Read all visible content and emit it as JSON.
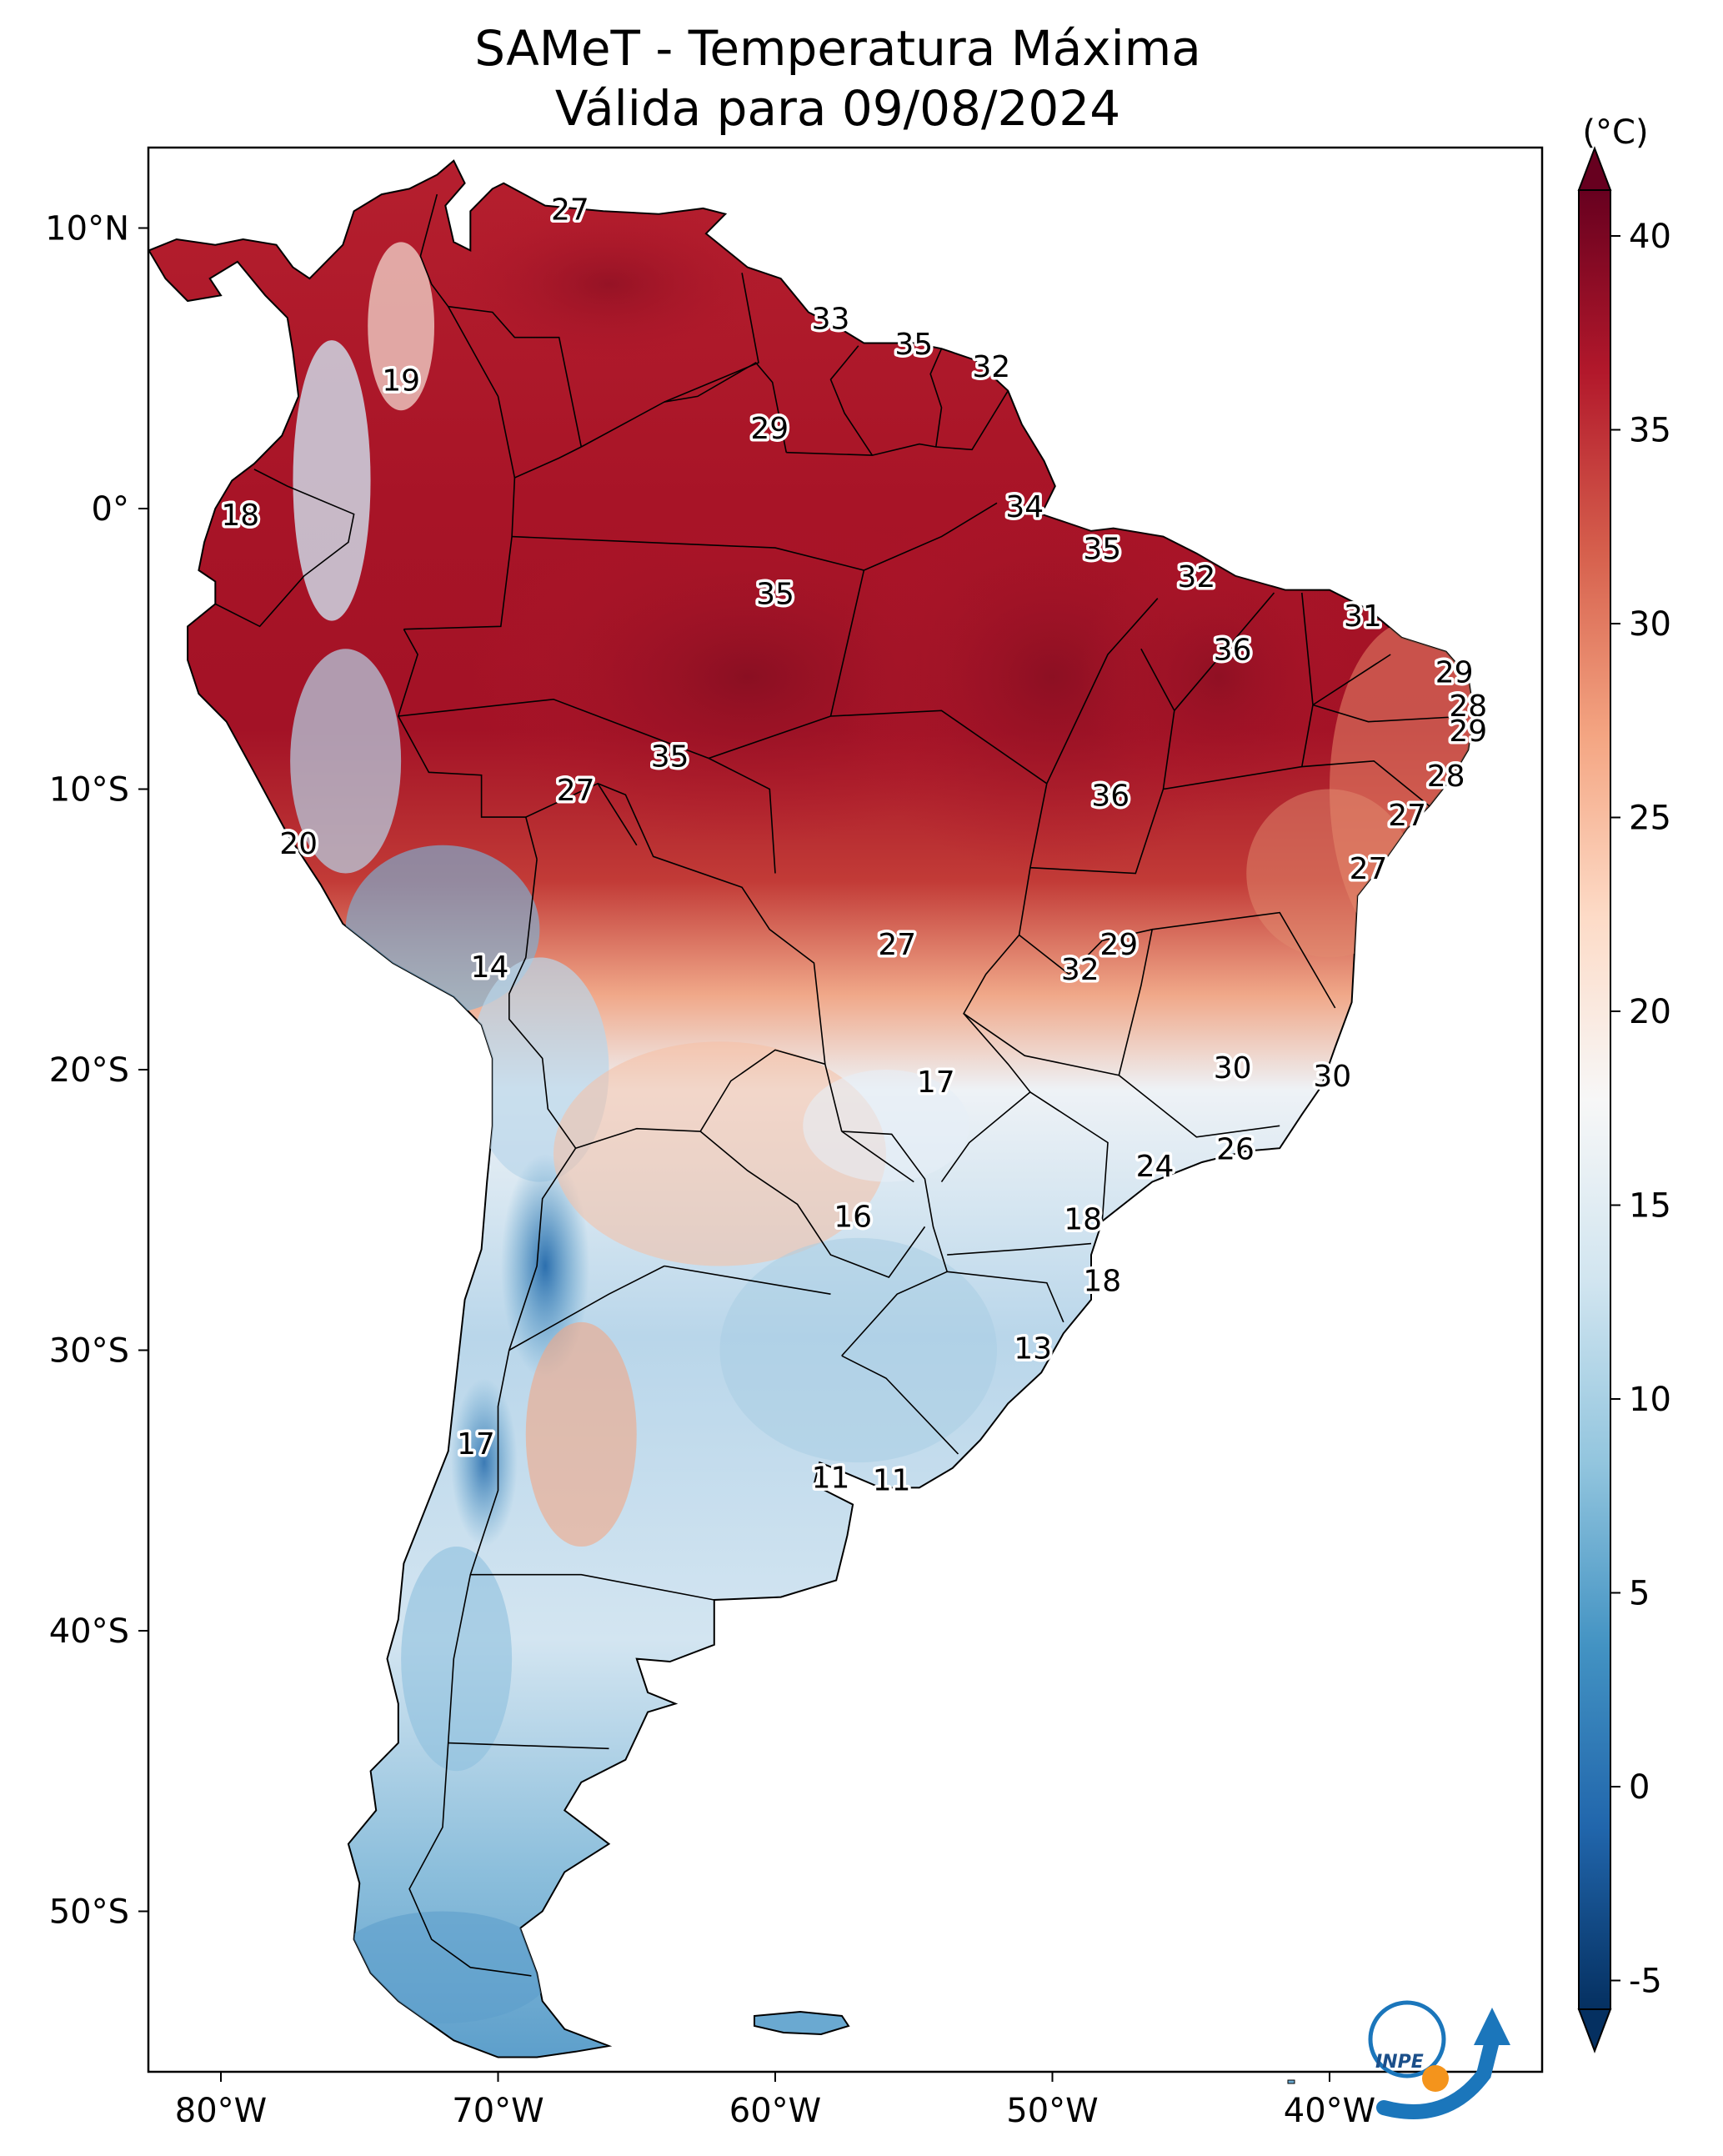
{
  "title": {
    "line1": "SAMeT - Temperatura Máxima",
    "line2": "Válida para 09/08/2024"
  },
  "axes": {
    "lat_labels": [
      "10°N",
      "0°",
      "10°S",
      "20°S",
      "30°S",
      "40°S",
      "50°S"
    ],
    "lon_labels": [
      "80°W",
      "70°W",
      "60°W",
      "50°W",
      "40°W"
    ]
  },
  "colorbar": {
    "unit": "(°C)",
    "ticks": [
      "40",
      "35",
      "30",
      "25",
      "20",
      "15",
      "10",
      "5",
      "0",
      "-5"
    ],
    "min": -7,
    "max": 42,
    "colors": [
      "#053061",
      "#2166ac",
      "#4393c3",
      "#92c5de",
      "#d1e5f0",
      "#f7f7f7",
      "#fddbc7",
      "#f4a582",
      "#d6604d",
      "#b2182b",
      "#67001f"
    ]
  },
  "logo": {
    "text": "INPE"
  },
  "temperature_labels": [
    {
      "lon": -67.4,
      "lat": 10.6,
      "value": "27"
    },
    {
      "lon": -58.0,
      "lat": 6.7,
      "value": "33"
    },
    {
      "lon": -55.0,
      "lat": 5.8,
      "value": "35"
    },
    {
      "lon": -52.2,
      "lat": 5.0,
      "value": "32"
    },
    {
      "lon": -73.5,
      "lat": 4.5,
      "value": "19"
    },
    {
      "lon": -60.2,
      "lat": 2.8,
      "value": "29"
    },
    {
      "lon": -51.0,
      "lat": 0.0,
      "value": "34"
    },
    {
      "lon": -48.2,
      "lat": -1.5,
      "value": "35"
    },
    {
      "lon": -44.8,
      "lat": -2.5,
      "value": "32"
    },
    {
      "lon": -38.8,
      "lat": -3.9,
      "value": "31"
    },
    {
      "lon": -79.3,
      "lat": -0.3,
      "value": "18"
    },
    {
      "lon": -60.0,
      "lat": -3.1,
      "value": "35"
    },
    {
      "lon": -43.5,
      "lat": -5.1,
      "value": "36"
    },
    {
      "lon": -35.5,
      "lat": -5.9,
      "value": "29"
    },
    {
      "lon": -35.0,
      "lat": -7.1,
      "value": "28"
    },
    {
      "lon": -35.0,
      "lat": -8.0,
      "value": "29"
    },
    {
      "lon": -63.8,
      "lat": -8.9,
      "value": "35"
    },
    {
      "lon": -35.8,
      "lat": -9.6,
      "value": "28"
    },
    {
      "lon": -67.2,
      "lat": -10.1,
      "value": "27"
    },
    {
      "lon": -47.9,
      "lat": -10.3,
      "value": "36"
    },
    {
      "lon": -37.2,
      "lat": -11.0,
      "value": "27"
    },
    {
      "lon": -38.6,
      "lat": -12.9,
      "value": "27"
    },
    {
      "lon": -77.2,
      "lat": -12.0,
      "value": "20"
    },
    {
      "lon": -55.6,
      "lat": -15.6,
      "value": "27"
    },
    {
      "lon": -47.6,
      "lat": -15.6,
      "value": "29"
    },
    {
      "lon": -49.0,
      "lat": -16.5,
      "value": "32"
    },
    {
      "lon": -70.3,
      "lat": -16.4,
      "value": "14"
    },
    {
      "lon": -54.2,
      "lat": -20.5,
      "value": "17"
    },
    {
      "lon": -43.5,
      "lat": -20.0,
      "value": "30"
    },
    {
      "lon": -39.9,
      "lat": -20.3,
      "value": "30"
    },
    {
      "lon": -46.3,
      "lat": -23.5,
      "value": "24"
    },
    {
      "lon": -43.4,
      "lat": -22.9,
      "value": "26"
    },
    {
      "lon": -57.2,
      "lat": -25.3,
      "value": "16"
    },
    {
      "lon": -48.9,
      "lat": -25.4,
      "value": "18"
    },
    {
      "lon": -48.2,
      "lat": -27.6,
      "value": "18"
    },
    {
      "lon": -50.7,
      "lat": -30.0,
      "value": "13"
    },
    {
      "lon": -70.8,
      "lat": -33.4,
      "value": "17"
    },
    {
      "lon": -58.0,
      "lat": -34.6,
      "value": "11"
    },
    {
      "lon": -55.8,
      "lat": -34.7,
      "value": "11"
    }
  ]
}
